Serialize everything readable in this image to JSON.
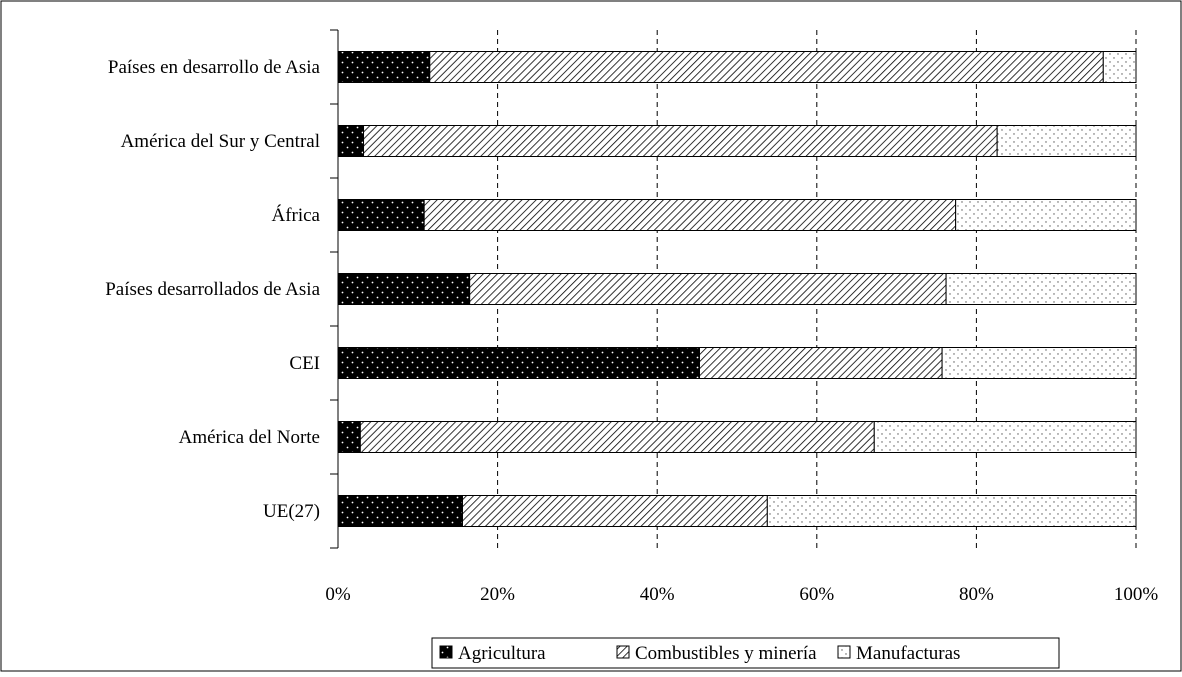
{
  "chart_data": {
    "type": "bar",
    "orientation": "horizontal",
    "stacked": true,
    "percent_stacked": true,
    "categories": [
      "Países en desarrollo de Asia",
      "América del Sur y Central",
      "África",
      "Países desarrollados de Asia",
      "CEI",
      "América del Norte",
      "UE(27)"
    ],
    "series": [
      {
        "name": "Agricultura",
        "values": [
          11.5,
          3.2,
          10.8,
          16.5,
          45.3,
          2.8,
          15.6
        ],
        "pattern": "dots-on-black"
      },
      {
        "name": "Combustibles y minería",
        "values": [
          84.4,
          79.4,
          66.6,
          59.7,
          30.4,
          64.4,
          38.2
        ],
        "pattern": "diagonal-hatch"
      },
      {
        "name": "Manufacturas",
        "values": [
          4.1,
          17.4,
          22.6,
          23.8,
          24.3,
          32.8,
          46.2
        ],
        "pattern": "sparse-dots"
      }
    ],
    "x_ticks": [
      "0%",
      "20%",
      "40%",
      "60%",
      "80%",
      "100%"
    ],
    "xlim": [
      0,
      100
    ],
    "grid": "vertical dashed",
    "legend_position": "bottom",
    "title": "",
    "xlabel": "",
    "ylabel": ""
  },
  "colors": {
    "border": "#000000",
    "background": "#ffffff",
    "agricultura": "#000000",
    "manufacturas_dot": "#555555"
  }
}
